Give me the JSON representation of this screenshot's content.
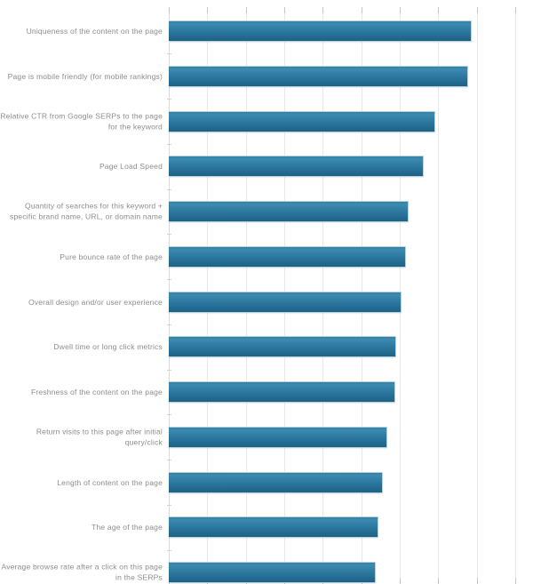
{
  "chart_data": {
    "type": "bar",
    "orientation": "horizontal",
    "title": "",
    "xlabel": "",
    "ylabel": "",
    "categories": [
      "Uniqueness of the content on the page",
      "Page is mobile friendly (for mobile rankings)",
      "Relative CTR from Google SERPs to the page for the keyword",
      "Page Load Speed",
      "Quantity of searches for this keyword + specific brand name, URL, or domain name",
      "Pure bounce rate of the page",
      "Overall design and/or user experience",
      "Dwell time or long click metrics",
      "Freshness of the content on the page",
      "Return visits to this page after initial query/click",
      "Length of content on the page",
      "The age of the page",
      "Average browse rate after a click on this page in the SERPs"
    ],
    "values": [
      7.86,
      7.78,
      6.93,
      6.62,
      6.23,
      6.16,
      6.04,
      5.91,
      5.89,
      5.67,
      5.56,
      5.44,
      5.38
    ],
    "xlim": [
      0,
      9.46
    ],
    "gridline_interval": 1,
    "grid": true,
    "legend": "none",
    "axis_tick_labels_visible": false
  },
  "colors": {
    "background": "#ffffff",
    "bar_gradient_top": "#3c8ab0",
    "bar_gradient_bottom": "#1e6084",
    "bar_border": "#b9d3e1",
    "gridline": "#e9e9e9",
    "tick": "#c6c6c6",
    "axis_line": "#dcdcdc",
    "label_text": "#8c8c8c"
  }
}
